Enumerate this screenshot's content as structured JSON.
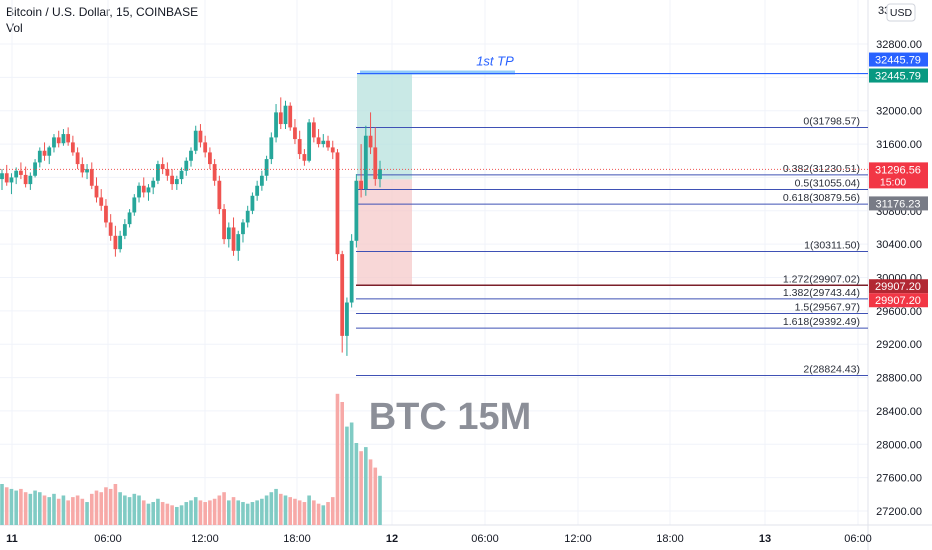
{
  "header": {
    "title": "Bitcoin / U.S. Dollar, 15, COINBASE",
    "indicator": "Vol",
    "currency": "USD"
  },
  "watermark": "BTC 15M",
  "colors": {
    "up": "#26a69a",
    "down": "#ef5350",
    "vol_up": "#80cbc4",
    "vol_down": "#f7a9a7",
    "fib_line": "#3f51b5",
    "tp_line": "#2962ff",
    "profit_zone": "#b2dfdb",
    "loss_zone": "#f5c6c6",
    "axis_text": "#131722",
    "grid": "#f0f3fa"
  },
  "chart_data": {
    "type": "candlestick",
    "symbol": "Bitcoin / U.S. Dollar",
    "timeframe": "15",
    "exchange": "COINBASE",
    "y_axis": {
      "ticks": [
        "32800.00",
        "32400.00",
        "32000.00",
        "31600.00",
        "31200.00",
        "30800.00",
        "30400.00",
        "30000.00",
        "29600.00",
        "29200.00",
        "28800.00",
        "28400.00",
        "28000.00",
        "27600.00",
        "27200.00"
      ],
      "top_partial": "33",
      "range": [
        27100,
        33000
      ]
    },
    "x_axis": {
      "ticks": [
        "11",
        "06:00",
        "12:00",
        "18:00",
        "12",
        "06:00",
        "12:00",
        "18:00",
        "13",
        "06:00"
      ]
    },
    "ohlc_sampled": [
      {
        "o": 31180,
        "h": 31300,
        "l": 31050,
        "c": 31250
      },
      {
        "o": 31250,
        "h": 31350,
        "l": 31100,
        "c": 31140
      },
      {
        "o": 31140,
        "h": 31250,
        "l": 31000,
        "c": 31200
      },
      {
        "o": 31200,
        "h": 31320,
        "l": 31120,
        "c": 31280
      },
      {
        "o": 31280,
        "h": 31380,
        "l": 31180,
        "c": 31230
      },
      {
        "o": 31230,
        "h": 31330,
        "l": 31080,
        "c": 31120
      },
      {
        "o": 31120,
        "h": 31260,
        "l": 31050,
        "c": 31220
      },
      {
        "o": 31220,
        "h": 31420,
        "l": 31200,
        "c": 31380
      },
      {
        "o": 31380,
        "h": 31560,
        "l": 31320,
        "c": 31520
      },
      {
        "o": 31520,
        "h": 31620,
        "l": 31400,
        "c": 31460
      },
      {
        "o": 31460,
        "h": 31580,
        "l": 31360,
        "c": 31560
      },
      {
        "o": 31560,
        "h": 31720,
        "l": 31500,
        "c": 31680
      },
      {
        "o": 31680,
        "h": 31760,
        "l": 31560,
        "c": 31610
      },
      {
        "o": 31610,
        "h": 31780,
        "l": 31580,
        "c": 31720
      },
      {
        "o": 31720,
        "h": 31800,
        "l": 31580,
        "c": 31620
      },
      {
        "o": 31620,
        "h": 31700,
        "l": 31460,
        "c": 31500
      },
      {
        "o": 31500,
        "h": 31560,
        "l": 31300,
        "c": 31360
      },
      {
        "o": 31360,
        "h": 31440,
        "l": 31200,
        "c": 31260
      },
      {
        "o": 31260,
        "h": 31360,
        "l": 31180,
        "c": 31300
      },
      {
        "o": 31300,
        "h": 31380,
        "l": 31060,
        "c": 31100
      },
      {
        "o": 31100,
        "h": 31200,
        "l": 30900,
        "c": 30960
      },
      {
        "o": 30960,
        "h": 31060,
        "l": 30800,
        "c": 30860
      },
      {
        "o": 30860,
        "h": 30940,
        "l": 30600,
        "c": 30660
      },
      {
        "o": 30660,
        "h": 30760,
        "l": 30440,
        "c": 30500
      },
      {
        "o": 30500,
        "h": 30620,
        "l": 30250,
        "c": 30340
      },
      {
        "o": 30340,
        "h": 30560,
        "l": 30300,
        "c": 30500
      },
      {
        "o": 30500,
        "h": 30700,
        "l": 30460,
        "c": 30640
      },
      {
        "o": 30640,
        "h": 30820,
        "l": 30600,
        "c": 30780
      },
      {
        "o": 30780,
        "h": 31000,
        "l": 30740,
        "c": 30960
      },
      {
        "o": 30960,
        "h": 31140,
        "l": 30900,
        "c": 31100
      },
      {
        "o": 31100,
        "h": 31200,
        "l": 30960,
        "c": 31020
      },
      {
        "o": 31020,
        "h": 31120,
        "l": 30920,
        "c": 31080
      },
      {
        "o": 31080,
        "h": 31200,
        "l": 31000,
        "c": 31160
      },
      {
        "o": 31160,
        "h": 31400,
        "l": 31120,
        "c": 31360
      },
      {
        "o": 31360,
        "h": 31440,
        "l": 31240,
        "c": 31300
      },
      {
        "o": 31300,
        "h": 31380,
        "l": 31160,
        "c": 31220
      },
      {
        "o": 31220,
        "h": 31300,
        "l": 31050,
        "c": 31120
      },
      {
        "o": 31120,
        "h": 31220,
        "l": 31050,
        "c": 31180
      },
      {
        "o": 31180,
        "h": 31320,
        "l": 31120,
        "c": 31280
      },
      {
        "o": 31280,
        "h": 31440,
        "l": 31220,
        "c": 31400
      },
      {
        "o": 31400,
        "h": 31560,
        "l": 31330,
        "c": 31520
      },
      {
        "o": 31520,
        "h": 31820,
        "l": 31480,
        "c": 31760
      },
      {
        "o": 31760,
        "h": 31840,
        "l": 31560,
        "c": 31620
      },
      {
        "o": 31620,
        "h": 31700,
        "l": 31440,
        "c": 31500
      },
      {
        "o": 31500,
        "h": 31560,
        "l": 31300,
        "c": 31360
      },
      {
        "o": 31360,
        "h": 31420,
        "l": 31100,
        "c": 31160
      },
      {
        "o": 31160,
        "h": 31220,
        "l": 30760,
        "c": 30820
      },
      {
        "o": 30820,
        "h": 30880,
        "l": 30400,
        "c": 30460
      },
      {
        "o": 30460,
        "h": 30660,
        "l": 30360,
        "c": 30600
      },
      {
        "o": 30600,
        "h": 30720,
        "l": 30260,
        "c": 30320
      },
      {
        "o": 30320,
        "h": 30560,
        "l": 30200,
        "c": 30520
      },
      {
        "o": 30520,
        "h": 30700,
        "l": 30420,
        "c": 30660
      },
      {
        "o": 30660,
        "h": 30860,
        "l": 30600,
        "c": 30800
      },
      {
        "o": 30800,
        "h": 31020,
        "l": 30760,
        "c": 30980
      },
      {
        "o": 30980,
        "h": 31160,
        "l": 30920,
        "c": 31100
      },
      {
        "o": 31100,
        "h": 31280,
        "l": 31040,
        "c": 31220
      },
      {
        "o": 31220,
        "h": 31460,
        "l": 31160,
        "c": 31420
      },
      {
        "o": 31420,
        "h": 31740,
        "l": 31360,
        "c": 31680
      },
      {
        "o": 31680,
        "h": 32080,
        "l": 31620,
        "c": 31980
      },
      {
        "o": 31980,
        "h": 32160,
        "l": 31780,
        "c": 31840
      },
      {
        "o": 31840,
        "h": 32120,
        "l": 31780,
        "c": 32060
      },
      {
        "o": 32060,
        "h": 32100,
        "l": 31760,
        "c": 31800
      },
      {
        "o": 31800,
        "h": 31900,
        "l": 31600,
        "c": 31660
      },
      {
        "o": 31660,
        "h": 31760,
        "l": 31420,
        "c": 31480
      },
      {
        "o": 31480,
        "h": 31540,
        "l": 31340,
        "c": 31400
      },
      {
        "o": 31400,
        "h": 31900,
        "l": 31380,
        "c": 31860
      },
      {
        "o": 31860,
        "h": 31920,
        "l": 31620,
        "c": 31680
      },
      {
        "o": 31680,
        "h": 31780,
        "l": 31560,
        "c": 31600
      },
      {
        "o": 31600,
        "h": 31720,
        "l": 31560,
        "c": 31640
      },
      {
        "o": 31640,
        "h": 31700,
        "l": 31520,
        "c": 31560
      },
      {
        "o": 31560,
        "h": 31640,
        "l": 31420,
        "c": 31500
      },
      {
        "o": 31500,
        "h": 31540,
        "l": 30200,
        "c": 30280
      },
      {
        "o": 30280,
        "h": 30320,
        "l": 29100,
        "c": 29300
      },
      {
        "o": 29300,
        "h": 29760,
        "l": 29060,
        "c": 29700
      },
      {
        "o": 29700,
        "h": 30520,
        "l": 29640,
        "c": 30440
      },
      {
        "o": 30440,
        "h": 31240,
        "l": 30360,
        "c": 31160
      },
      {
        "o": 31160,
        "h": 31600,
        "l": 30960,
        "c": 31060
      },
      {
        "o": 31060,
        "h": 31820,
        "l": 30980,
        "c": 31700
      },
      {
        "o": 31700,
        "h": 31980,
        "l": 31480,
        "c": 31560
      },
      {
        "o": 31560,
        "h": 31800,
        "l": 31100,
        "c": 31180
      },
      {
        "o": 31180,
        "h": 31400,
        "l": 31080,
        "c": 31300
      }
    ],
    "volume_sampled": [
      {
        "v": 50,
        "up": true
      },
      {
        "v": 46,
        "up": false
      },
      {
        "v": 44,
        "up": true
      },
      {
        "v": 42,
        "up": true
      },
      {
        "v": 44,
        "up": false
      },
      {
        "v": 40,
        "up": false
      },
      {
        "v": 38,
        "up": true
      },
      {
        "v": 42,
        "up": true
      },
      {
        "v": 40,
        "up": true
      },
      {
        "v": 36,
        "up": false
      },
      {
        "v": 34,
        "up": true
      },
      {
        "v": 38,
        "up": true
      },
      {
        "v": 32,
        "up": false
      },
      {
        "v": 36,
        "up": true
      },
      {
        "v": 30,
        "up": false
      },
      {
        "v": 34,
        "up": false
      },
      {
        "v": 36,
        "up": false
      },
      {
        "v": 32,
        "up": false
      },
      {
        "v": 28,
        "up": true
      },
      {
        "v": 38,
        "up": false
      },
      {
        "v": 42,
        "up": false
      },
      {
        "v": 40,
        "up": false
      },
      {
        "v": 46,
        "up": false
      },
      {
        "v": 44,
        "up": false
      },
      {
        "v": 50,
        "up": false
      },
      {
        "v": 40,
        "up": true
      },
      {
        "v": 36,
        "up": true
      },
      {
        "v": 34,
        "up": true
      },
      {
        "v": 38,
        "up": true
      },
      {
        "v": 36,
        "up": true
      },
      {
        "v": 30,
        "up": false
      },
      {
        "v": 26,
        "up": true
      },
      {
        "v": 28,
        "up": true
      },
      {
        "v": 32,
        "up": true
      },
      {
        "v": 28,
        "up": false
      },
      {
        "v": 26,
        "up": false
      },
      {
        "v": 24,
        "up": false
      },
      {
        "v": 22,
        "up": true
      },
      {
        "v": 24,
        "up": true
      },
      {
        "v": 28,
        "up": true
      },
      {
        "v": 30,
        "up": true
      },
      {
        "v": 34,
        "up": true
      },
      {
        "v": 30,
        "up": false
      },
      {
        "v": 28,
        "up": false
      },
      {
        "v": 30,
        "up": false
      },
      {
        "v": 32,
        "up": false
      },
      {
        "v": 36,
        "up": false
      },
      {
        "v": 40,
        "up": false
      },
      {
        "v": 30,
        "up": true
      },
      {
        "v": 34,
        "up": false
      },
      {
        "v": 30,
        "up": true
      },
      {
        "v": 28,
        "up": true
      },
      {
        "v": 26,
        "up": true
      },
      {
        "v": 28,
        "up": true
      },
      {
        "v": 30,
        "up": true
      },
      {
        "v": 32,
        "up": true
      },
      {
        "v": 36,
        "up": true
      },
      {
        "v": 40,
        "up": true
      },
      {
        "v": 44,
        "up": true
      },
      {
        "v": 38,
        "up": false
      },
      {
        "v": 36,
        "up": true
      },
      {
        "v": 34,
        "up": false
      },
      {
        "v": 32,
        "up": false
      },
      {
        "v": 30,
        "up": false
      },
      {
        "v": 28,
        "up": false
      },
      {
        "v": 36,
        "up": true
      },
      {
        "v": 30,
        "up": false
      },
      {
        "v": 26,
        "up": false
      },
      {
        "v": 24,
        "up": true
      },
      {
        "v": 28,
        "up": false
      },
      {
        "v": 34,
        "up": false
      },
      {
        "v": 160,
        "up": false
      },
      {
        "v": 150,
        "up": false
      },
      {
        "v": 120,
        "up": true
      },
      {
        "v": 125,
        "up": true
      },
      {
        "v": 100,
        "up": true
      },
      {
        "v": 90,
        "up": false
      },
      {
        "v": 95,
        "up": true
      },
      {
        "v": 80,
        "up": false
      },
      {
        "v": 70,
        "up": false
      },
      {
        "v": 60,
        "up": true
      }
    ],
    "fib_levels": [
      {
        "ratio": "0",
        "price": 31798.57,
        "label": "0(31798.57)"
      },
      {
        "ratio": "0.382",
        "price": 31230.51,
        "label": "0.382(31230.51)"
      },
      {
        "ratio": "0.5",
        "price": 31055.04,
        "label": "0.5(31055.04)"
      },
      {
        "ratio": "0.618",
        "price": 30879.56,
        "label": "0.618(30879.56)"
      },
      {
        "ratio": "1",
        "price": 30311.5,
        "label": "1(30311.50)"
      },
      {
        "ratio": "1.272",
        "price": 29907.02,
        "label": "1.272(29907.02)"
      },
      {
        "ratio": "1.382",
        "price": 29743.44,
        "label": "1.382(29743.44)"
      },
      {
        "ratio": "1.5",
        "price": 29567.97,
        "label": "1.5(29567.97)"
      },
      {
        "ratio": "1.618",
        "price": 29392.49,
        "label": "1.618(29392.49)"
      },
      {
        "ratio": "2",
        "price": 28824.43,
        "label": "2(28824.43)"
      }
    ],
    "position": {
      "entry": 31176.23,
      "target": 32445.79,
      "stop": 29907.2,
      "target_label": "1st TP"
    },
    "price_badges": [
      {
        "text": "32445.79",
        "price": 32445.79,
        "color": "#2962ff"
      },
      {
        "text": "32445.79",
        "price": 32445.79,
        "color": "#089981"
      },
      {
        "text": "31296.56",
        "price": 31296.56,
        "color": "#f23645",
        "sub": "15:00"
      },
      {
        "text": "31176.23",
        "price": 31176.23,
        "color": "#787b86"
      },
      {
        "text": "29907.20",
        "price": 29907.2,
        "color": "#b22833"
      },
      {
        "text": "29907.20",
        "price": 29907.2,
        "color": "#f23645"
      }
    ],
    "last_price": 31296.56,
    "countdown": "15:00"
  }
}
